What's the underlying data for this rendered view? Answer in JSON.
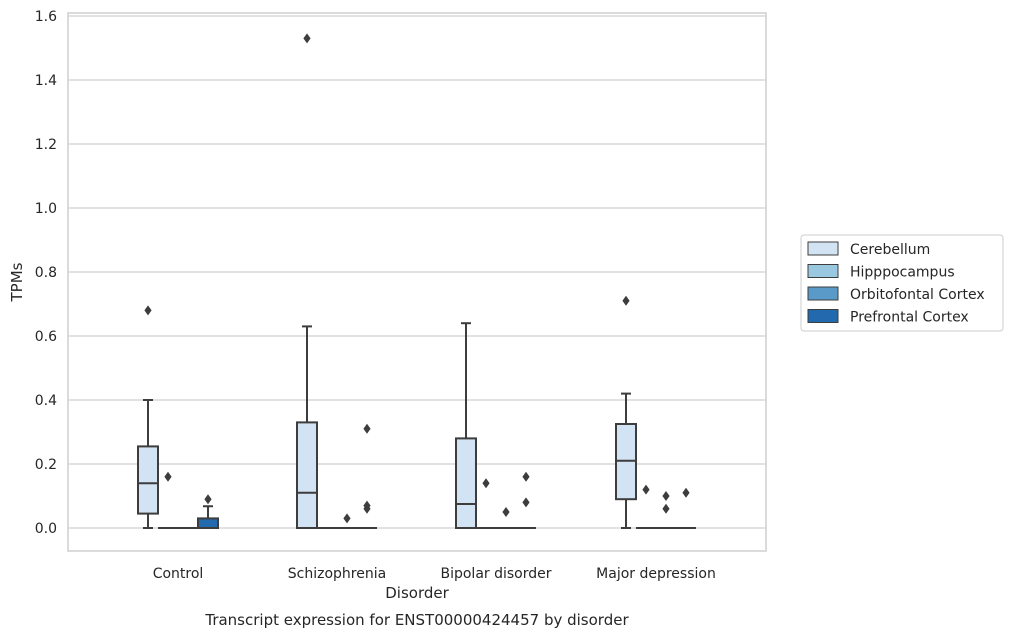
{
  "chart_data": {
    "type": "box",
    "title": "",
    "caption": "Transcript expression for ENST00000424457 by disorder",
    "xlabel": "Disorder",
    "ylabel": "TPMs",
    "ylim": [
      -0.075,
      1.61
    ],
    "yticks": [
      "0.0",
      "0.2",
      "0.4",
      "0.6",
      "0.8",
      "1.0",
      "1.2",
      "1.4",
      "1.6"
    ],
    "grid": true,
    "legend_position": "right",
    "categories": [
      "Control",
      "Schizophrenia",
      "Bipolar disorder",
      "Major depression"
    ],
    "series": [
      {
        "name": "Cerebellum",
        "color": "#d2e3f3",
        "boxes": [
          {
            "whislo": 0.0,
            "q1": 0.045,
            "med": 0.14,
            "q3": 0.255,
            "whishi": 0.4,
            "fliers": [
              0.68
            ]
          },
          {
            "whislo": 0.0,
            "q1": 0.0,
            "med": 0.11,
            "q3": 0.33,
            "whishi": 0.63,
            "fliers": [
              1.53
            ]
          },
          {
            "whislo": 0.0,
            "q1": 0.0,
            "med": 0.075,
            "q3": 0.28,
            "whishi": 0.64,
            "fliers": []
          },
          {
            "whislo": 0.0,
            "q1": 0.09,
            "med": 0.21,
            "q3": 0.325,
            "whishi": 0.42,
            "fliers": [
              0.71
            ]
          }
        ]
      },
      {
        "name": "Hipppocampus",
        "color": "#9ac8e0",
        "boxes": [
          {
            "whislo": 0.0,
            "q1": 0.0,
            "med": 0.0,
            "q3": 0.0,
            "whishi": 0.0,
            "fliers": [
              0.16
            ]
          },
          {
            "whislo": 0.0,
            "q1": 0.0,
            "med": 0.0,
            "q3": 0.0,
            "whishi": 0.0,
            "fliers": []
          },
          {
            "whislo": 0.0,
            "q1": 0.0,
            "med": 0.0,
            "q3": 0.0,
            "whishi": 0.0,
            "fliers": [
              0.14
            ]
          },
          {
            "whislo": 0.0,
            "q1": 0.0,
            "med": 0.0,
            "q3": 0.0,
            "whishi": 0.0,
            "fliers": [
              0.12
            ]
          }
        ]
      },
      {
        "name": "Orbitofontal Cortex",
        "color": "#5a9ac8",
        "boxes": [
          {
            "whislo": 0.0,
            "q1": 0.0,
            "med": 0.0,
            "q3": 0.0,
            "whishi": 0.0,
            "fliers": []
          },
          {
            "whislo": 0.0,
            "q1": 0.0,
            "med": 0.0,
            "q3": 0.0,
            "whishi": 0.0,
            "fliers": [
              0.03
            ]
          },
          {
            "whislo": 0.0,
            "q1": 0.0,
            "med": 0.0,
            "q3": 0.0,
            "whishi": 0.0,
            "fliers": [
              0.05
            ]
          },
          {
            "whislo": 0.0,
            "q1": 0.0,
            "med": 0.0,
            "q3": 0.0,
            "whishi": 0.0,
            "fliers": [
              0.1,
              0.06
            ]
          }
        ]
      },
      {
        "name": "Prefrontal Cortex",
        "color": "#2369ad",
        "boxes": [
          {
            "whislo": 0.0,
            "q1": 0.0,
            "med": 0.0,
            "q3": 0.03,
            "whishi": 0.068,
            "fliers": [
              0.09
            ]
          },
          {
            "whislo": 0.0,
            "q1": 0.0,
            "med": 0.0,
            "q3": 0.0,
            "whishi": 0.0,
            "fliers": [
              0.31,
              0.07,
              0.06
            ]
          },
          {
            "whislo": 0.0,
            "q1": 0.0,
            "med": 0.0,
            "q3": 0.0,
            "whishi": 0.0,
            "fliers": [
              0.16,
              0.08
            ]
          },
          {
            "whislo": 0.0,
            "q1": 0.0,
            "med": 0.0,
            "q3": 0.0,
            "whishi": 0.0,
            "fliers": [
              0.11
            ]
          }
        ]
      }
    ],
    "line_color": "#3d3d3d",
    "grid_color": "#d0d0d0"
  }
}
